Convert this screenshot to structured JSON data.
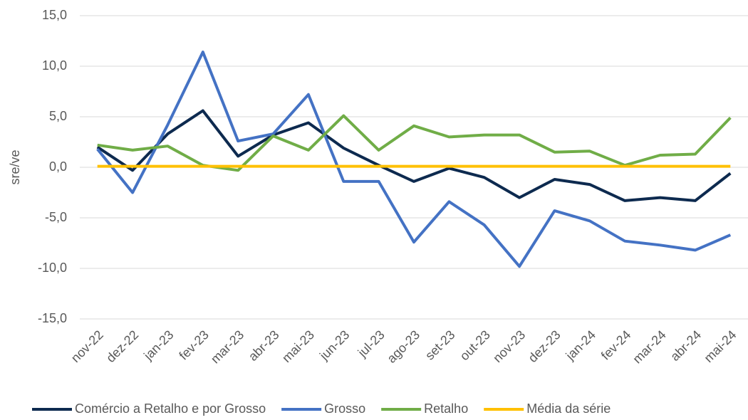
{
  "chart_data": {
    "type": "line",
    "y_label": "sre/ve",
    "categories": [
      "nov-22",
      "dez-22",
      "jan-23",
      "fev-23",
      "mar-23",
      "abr-23",
      "mai-23",
      "jun-23",
      "jul-23",
      "ago-23",
      "set-23",
      "out-23",
      "nov-23",
      "dez-23",
      "jan-24",
      "fev-24",
      "mar-24",
      "abr-24",
      "mai-24"
    ],
    "series": [
      {
        "name": "Comércio a Retalho e por Grosso",
        "color": "#0d2a4f",
        "values": [
          2.0,
          -0.3,
          3.3,
          5.6,
          1.1,
          3.2,
          4.4,
          1.9,
          0.2,
          -1.4,
          -0.1,
          -1.0,
          -3.0,
          -1.2,
          -1.7,
          -3.3,
          -3.0,
          -3.3,
          -0.6
        ]
      },
      {
        "name": "Grosso",
        "color": "#4472c4",
        "values": [
          1.8,
          -2.5,
          4.2,
          11.4,
          2.6,
          3.3,
          7.2,
          -1.4,
          -1.4,
          -7.4,
          -3.4,
          -5.7,
          -9.8,
          -4.3,
          -5.3,
          -7.3,
          -7.7,
          -8.2,
          -6.7
        ]
      },
      {
        "name": "Retalho",
        "color": "#70ad47",
        "values": [
          2.2,
          1.7,
          2.1,
          0.2,
          -0.3,
          3.1,
          1.7,
          5.1,
          1.7,
          4.1,
          3.0,
          3.2,
          3.2,
          1.5,
          1.6,
          0.2,
          1.2,
          1.3,
          4.9
        ]
      },
      {
        "name": "Média da série",
        "color": "#ffc000",
        "values": [
          0.1,
          0.1,
          0.1,
          0.1,
          0.1,
          0.1,
          0.1,
          0.1,
          0.1,
          0.1,
          0.1,
          0.1,
          0.1,
          0.1,
          0.1,
          0.1,
          0.1,
          0.1,
          0.1
        ]
      }
    ],
    "ylim": [
      -15,
      15
    ],
    "yticks": [
      {
        "value": -15,
        "label": "-15,0"
      },
      {
        "value": -10,
        "label": "-10,0"
      },
      {
        "value": -5,
        "label": "-5,0"
      },
      {
        "value": 0,
        "label": "0,0"
      },
      {
        "value": 5,
        "label": "5,0"
      },
      {
        "value": 10,
        "label": "10,0"
      },
      {
        "value": 15,
        "label": "15,0"
      }
    ],
    "grid": true,
    "legend": "bottom"
  }
}
